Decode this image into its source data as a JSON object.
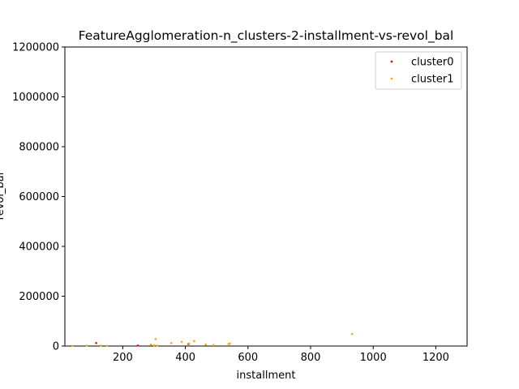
{
  "chart_data": {
    "type": "scatter",
    "title": "FeatureAgglomeration-n_clusters-2-installment-vs-revol_bal",
    "xlabel": "installment",
    "ylabel": "revol_bal",
    "xlim": [
      15,
      1300
    ],
    "ylim": [
      0,
      1200000
    ],
    "xticks": [
      200,
      400,
      600,
      800,
      1000,
      1200
    ],
    "yticks": [
      0,
      200000,
      400000,
      600000,
      800000,
      1000000,
      1200000
    ],
    "grid": false,
    "legend_position": "top-right",
    "series": [
      {
        "name": "cluster0",
        "color": "#ff0000",
        "points": [
          [
            115,
            12000
          ],
          [
            248,
            2000
          ],
          [
            410,
            8000
          ]
        ]
      },
      {
        "name": "cluster1",
        "color": "#ffa500",
        "points": [
          [
            40,
            1000
          ],
          [
            85,
            1500
          ],
          [
            130,
            2000
          ],
          [
            150,
            1000
          ],
          [
            290,
            6000
          ],
          [
            300,
            3000
          ],
          [
            305,
            28000
          ],
          [
            310,
            2000
          ],
          [
            355,
            12000
          ],
          [
            388,
            17000
          ],
          [
            412,
            10000
          ],
          [
            428,
            20000
          ],
          [
            465,
            6000
          ],
          [
            490,
            4000
          ],
          [
            538,
            8000
          ],
          [
            542,
            10000
          ],
          [
            933,
            48000
          ]
        ]
      }
    ]
  }
}
